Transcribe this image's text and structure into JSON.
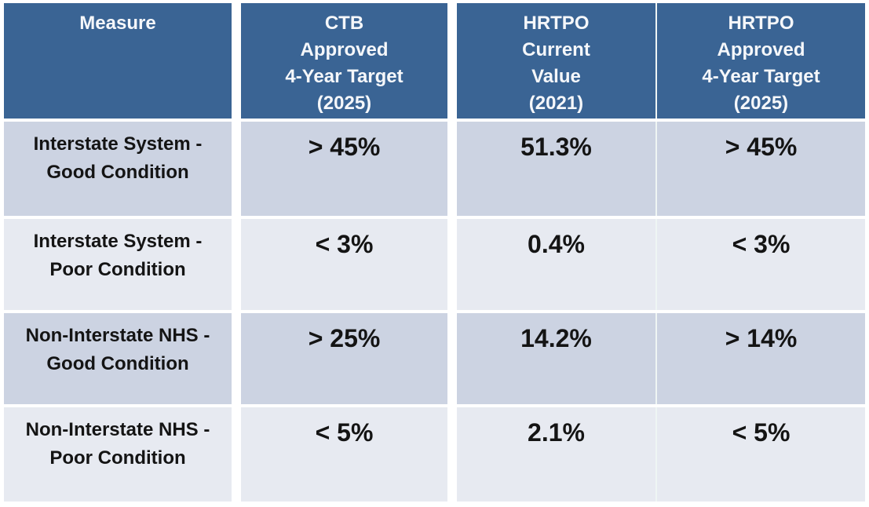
{
  "theme": {
    "header_bg": "#3A6494",
    "header_text": "#F5F7FA",
    "row_odd_bg": "#CCD3E2",
    "row_even_bg": "#E7EAF1",
    "body_text": "#141414",
    "divider": "#EFF5F4",
    "page_bg": "#FFFFFF"
  },
  "table": {
    "columns": [
      {
        "id": "measure",
        "label": "Measure"
      },
      {
        "id": "ctb_target",
        "label": "CTB\nApproved\n4-Year Target\n(2025)"
      },
      {
        "id": "current_value",
        "label": "HRTPO\nCurrent\nValue\n(2021)"
      },
      {
        "id": "hrtpo_target",
        "label": "HRTPO\nApproved\n4-Year Target\n(2025)"
      }
    ],
    "rows": [
      {
        "measure": "Interstate System -\nGood Condition",
        "ctb_target": "> 45%",
        "current_value": "51.3%",
        "hrtpo_target": "> 45%"
      },
      {
        "measure": "Interstate System -\nPoor Condition",
        "ctb_target": "< 3%",
        "current_value": "0.4%",
        "hrtpo_target": "< 3%"
      },
      {
        "measure": "Non-Interstate NHS -\nGood Condition",
        "ctb_target": "> 25%",
        "current_value": "14.2%",
        "hrtpo_target": "> 14%"
      },
      {
        "measure": "Non-Interstate NHS -\nPoor Condition",
        "ctb_target": "< 5%",
        "current_value": "2.1%",
        "hrtpo_target": "< 5%"
      }
    ]
  },
  "chart_data": {
    "type": "table",
    "title": "",
    "columns": [
      "Measure",
      "CTB Approved 4-Year Target (2025)",
      "HRTPO Current Value (2021)",
      "HRTPO Approved 4-Year Target (2025)"
    ],
    "rows": [
      [
        "Interstate System - Good Condition",
        "> 45%",
        "51.3%",
        "> 45%"
      ],
      [
        "Interstate System - Poor Condition",
        "< 3%",
        "0.4%",
        "< 3%"
      ],
      [
        "Non-Interstate NHS - Good Condition",
        "> 25%",
        "14.2%",
        "> 14%"
      ],
      [
        "Non-Interstate NHS - Poor Condition",
        "< 5%",
        "2.1%",
        "< 5%"
      ]
    ]
  }
}
